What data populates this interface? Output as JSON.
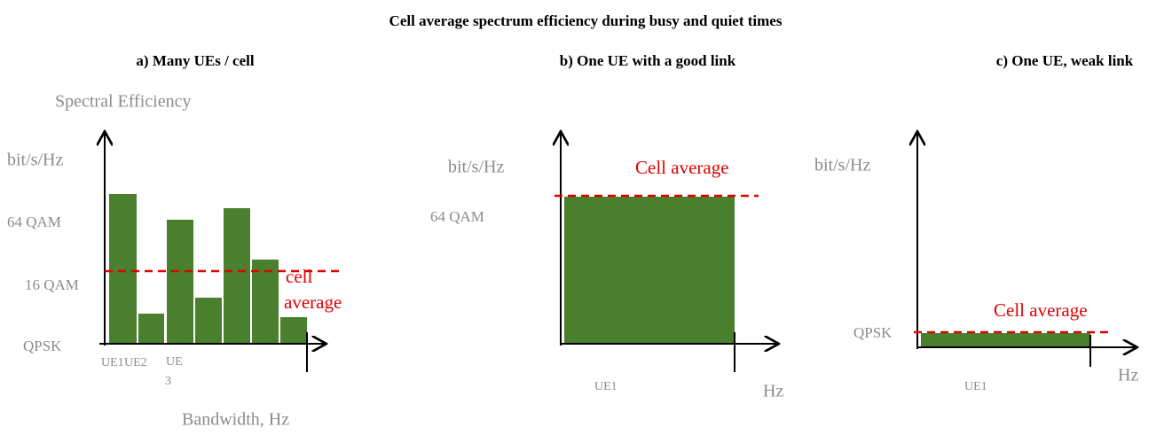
{
  "title": "Cell average spectrum efficiency during busy and quiet times",
  "panels": [
    {
      "title": "a) Many UEs / cell",
      "y_axis_title": "Spectral Efficiency",
      "unit": "bit/s/Hz",
      "levels": [
        "64 QAM",
        "16 QAM",
        "QPSK"
      ],
      "average_label": [
        "cell",
        "average"
      ],
      "ue_labels": [
        "UE1",
        "UE2",
        "UE",
        "3"
      ],
      "x_axis_title": "Bandwidth, Hz"
    },
    {
      "title": "b) One UE with a good link",
      "unit": "bit/s/Hz",
      "average_label": "Cell average",
      "level": "64  QAM",
      "ue_label": "UE1",
      "x_axis_title": "Hz"
    },
    {
      "title": "c) One UE, weak link",
      "unit": "bit/s/Hz",
      "average_label": "Cell average",
      "level": "QPSK",
      "ue_label": "UE1",
      "x_axis_title": "Hz"
    }
  ]
}
